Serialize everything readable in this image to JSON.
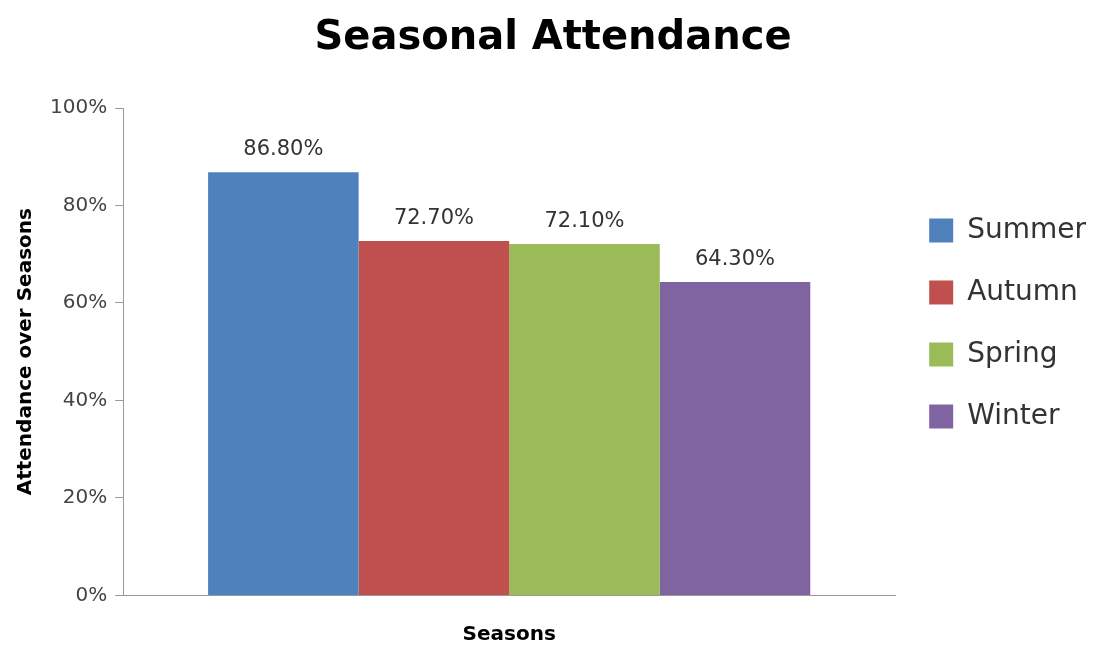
{
  "chart_data": {
    "type": "bar",
    "title": "Seasonal Attendance",
    "xlabel": "Seasons",
    "ylabel": "Attendance over Seasons",
    "categories": [
      null
    ],
    "series": [
      {
        "name": "Summer",
        "color": "#4f81bd",
        "values": [
          86.8
        ],
        "value_labels": [
          "86.80%"
        ]
      },
      {
        "name": "Autumn",
        "color": "#c0504d",
        "values": [
          72.7
        ],
        "value_labels": [
          "72.70%"
        ]
      },
      {
        "name": "Spring",
        "color": "#9bbb59",
        "values": [
          72.1
        ],
        "value_labels": [
          "72.10%"
        ]
      },
      {
        "name": "Winter",
        "color": "#8064a2",
        "values": [
          64.3
        ],
        "value_labels": [
          "64.30%"
        ]
      }
    ],
    "ylim": [
      0,
      100
    ],
    "yticks": [
      {
        "value": 0,
        "label": "0%"
      },
      {
        "value": 20,
        "label": "20%"
      },
      {
        "value": 40,
        "label": "40%"
      },
      {
        "value": 60,
        "label": "60%"
      },
      {
        "value": 80,
        "label": "80%"
      },
      {
        "value": 100,
        "label": "100%"
      }
    ],
    "legend": "right",
    "grid": false
  }
}
